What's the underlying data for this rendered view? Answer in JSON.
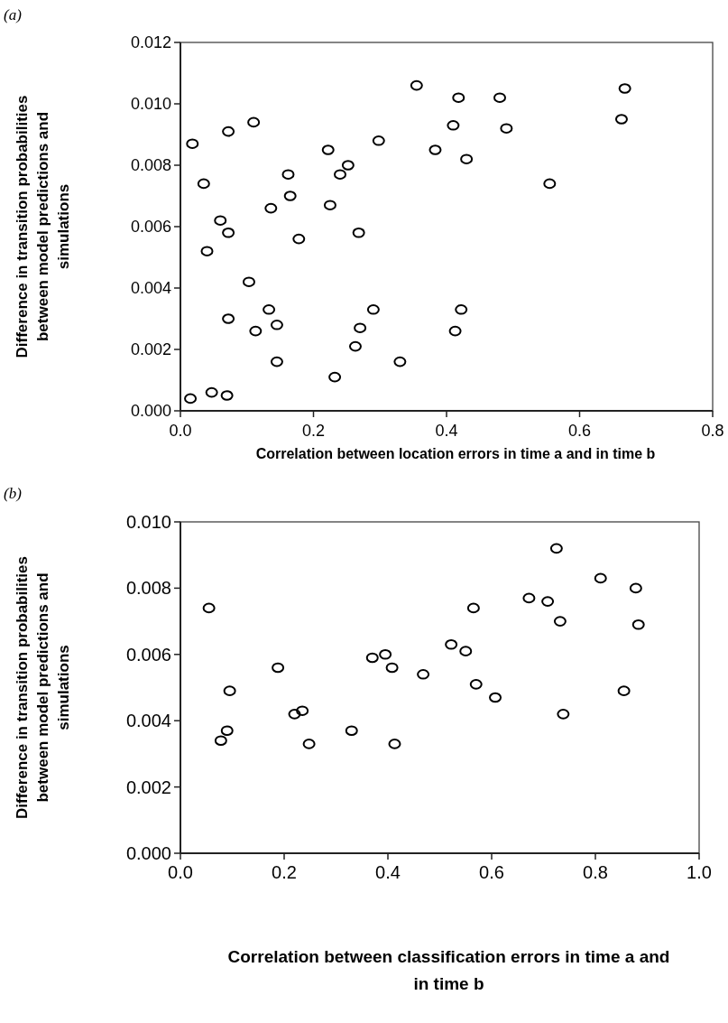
{
  "chart_data": [
    {
      "type": "scatter",
      "annotations": [
        "(a)"
      ],
      "xlabel": "Correlation between location errors in time a and in time b",
      "ylabel": "Difference in transition probabilities between model predictions and simulations",
      "xlim": [
        0,
        0.8
      ],
      "xticks": [
        {
          "value": 0,
          "label": "0.0"
        },
        {
          "value": 0.2,
          "label": "0.2"
        },
        {
          "value": 0.4,
          "label": "0.4"
        },
        {
          "value": 0.6,
          "label": "0.6"
        },
        {
          "value": 0.8,
          "label": "0.8"
        }
      ],
      "ylim": [
        0,
        0.012
      ],
      "yticks": [
        {
          "value": 0,
          "label": "0.000"
        },
        {
          "value": 0.002,
          "label": "0.002"
        },
        {
          "value": 0.004,
          "label": "0.004"
        },
        {
          "value": 0.006,
          "label": "0.006"
        },
        {
          "value": 0.008,
          "label": "0.008"
        },
        {
          "value": 0.01,
          "label": "0.010"
        },
        {
          "value": 0.012,
          "label": "0.012"
        }
      ],
      "marker": "circle",
      "grid": false,
      "series": [
        {
          "color": "#000000",
          "x": [
            0.015,
            0.047,
            0.07,
            0.018,
            0.035,
            0.04,
            0.06,
            0.072,
            0.072,
            0.072,
            0.103,
            0.11,
            0.113,
            0.133,
            0.136,
            0.145,
            0.145,
            0.162,
            0.165,
            0.178,
            0.222,
            0.225,
            0.232,
            0.24,
            0.252,
            0.263,
            0.268,
            0.27,
            0.29,
            0.298,
            0.33,
            0.355,
            0.383,
            0.41,
            0.413,
            0.418,
            0.422,
            0.43,
            0.48,
            0.49,
            0.555,
            0.663,
            0.668
          ],
          "values": [
            0.0004,
            0.0006,
            0.0005,
            0.0087,
            0.0074,
            0.0052,
            0.0062,
            0.0091,
            0.0058,
            0.003,
            0.0042,
            0.0094,
            0.0026,
            0.0033,
            0.0066,
            0.0028,
            0.0016,
            0.0077,
            0.007,
            0.0056,
            0.0085,
            0.0067,
            0.0011,
            0.0077,
            0.008,
            0.0021,
            0.0058,
            0.0027,
            0.0033,
            0.0088,
            0.0016,
            0.0106,
            0.0085,
            0.0093,
            0.0026,
            0.0102,
            0.0033,
            0.0082,
            0.0102,
            0.0092,
            0.0074,
            0.0095,
            0.0105
          ]
        }
      ]
    },
    {
      "type": "scatter",
      "annotations": [
        "(b)"
      ],
      "xlabel": "Correlation between classification errors in time a and in time b",
      "ylabel": "Difference in transition probabilities between model predictions and simulations",
      "xlim": [
        0,
        1
      ],
      "xticks": [
        {
          "value": 0,
          "label": "0.0"
        },
        {
          "value": 0.2,
          "label": "0.2"
        },
        {
          "value": 0.4,
          "label": "0.4"
        },
        {
          "value": 0.6,
          "label": "0.6"
        },
        {
          "value": 0.8,
          "label": "0.8"
        },
        {
          "value": 1,
          "label": "1.0"
        }
      ],
      "ylim": [
        0,
        0.01
      ],
      "yticks": [
        {
          "value": 0,
          "label": "0.000"
        },
        {
          "value": 0.002,
          "label": "0.002"
        },
        {
          "value": 0.004,
          "label": "0.004"
        },
        {
          "value": 0.006,
          "label": "0.006"
        },
        {
          "value": 0.008,
          "label": "0.008"
        },
        {
          "value": 0.01,
          "label": "0.010"
        }
      ],
      "marker": "circle",
      "grid": false,
      "series": [
        {
          "color": "#000000",
          "x": [
            0.055,
            0.078,
            0.09,
            0.095,
            0.188,
            0.22,
            0.235,
            0.248,
            0.33,
            0.37,
            0.395,
            0.408,
            0.413,
            0.468,
            0.522,
            0.55,
            0.565,
            0.57,
            0.607,
            0.672,
            0.708,
            0.725,
            0.732,
            0.738,
            0.81,
            0.855,
            0.878,
            0.883
          ],
          "values": [
            0.0074,
            0.0034,
            0.0037,
            0.0049,
            0.0056,
            0.0042,
            0.0043,
            0.0033,
            0.0037,
            0.0059,
            0.006,
            0.0056,
            0.0033,
            0.0054,
            0.0063,
            0.0061,
            0.0074,
            0.0051,
            0.0047,
            0.0077,
            0.0076,
            0.0092,
            0.007,
            0.0042,
            0.0083,
            0.0049,
            0.008,
            0.0069
          ]
        }
      ]
    }
  ]
}
